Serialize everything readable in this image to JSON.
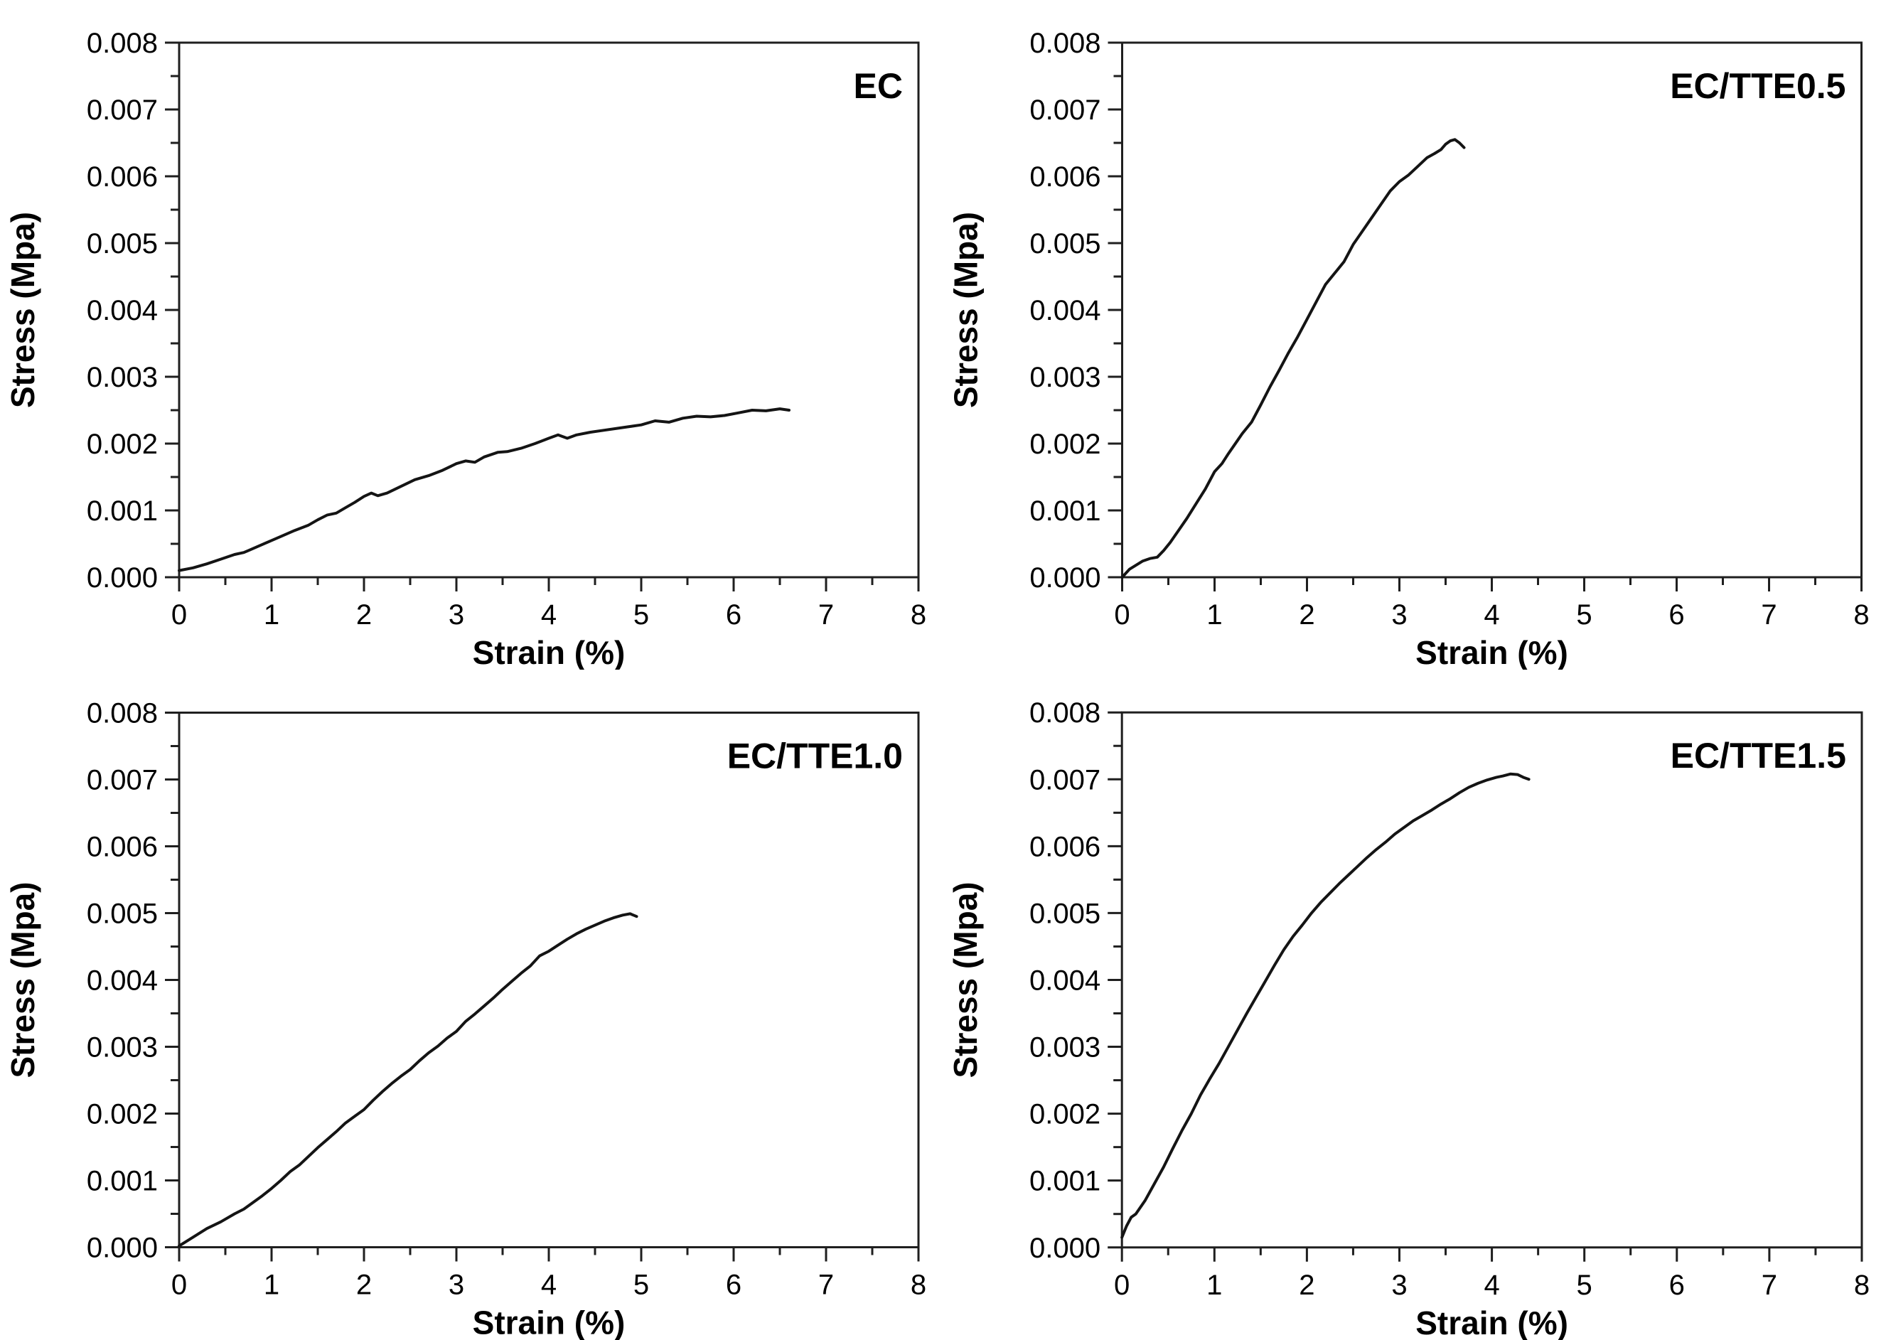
{
  "page": {
    "background": "#ffffff"
  },
  "style": {
    "axis_color": "#1f1f1f",
    "curve_color": "#141414",
    "text_color": "#000000",
    "axis_stroke_width": 3,
    "curve_stroke_width": 4
  },
  "chart_data": [
    {
      "id": "ec",
      "type": "line",
      "panel_label": "EC",
      "xlabel": "Strain (%)",
      "ylabel": "Stress (Mpa)",
      "xlim": [
        0,
        8
      ],
      "ylim": [
        0,
        0.008
      ],
      "x_major_step": 1,
      "x_minor_step": 0.5,
      "y_major_step": 0.001,
      "y_minor_step": 0.0005,
      "y_tick_decimals": 3,
      "grid": false,
      "legend_position": "none",
      "points": [
        [
          0,
          0.0001
        ],
        [
          0.15,
          0.00014
        ],
        [
          0.3,
          0.0002
        ],
        [
          0.45,
          0.00027
        ],
        [
          0.6,
          0.00034
        ],
        [
          0.7,
          0.00037
        ],
        [
          0.75,
          0.0004
        ],
        [
          0.9,
          0.00049
        ],
        [
          1.0,
          0.00055
        ],
        [
          1.1,
          0.00061
        ],
        [
          1.25,
          0.0007
        ],
        [
          1.4,
          0.00078
        ],
        [
          1.5,
          0.00086
        ],
        [
          1.6,
          0.00093
        ],
        [
          1.7,
          0.00096
        ],
        [
          1.8,
          0.00104
        ],
        [
          1.9,
          0.00112
        ],
        [
          2.0,
          0.00121
        ],
        [
          2.08,
          0.00126
        ],
        [
          2.15,
          0.00122
        ],
        [
          2.25,
          0.00126
        ],
        [
          2.4,
          0.00136
        ],
        [
          2.55,
          0.00146
        ],
        [
          2.7,
          0.00152
        ],
        [
          2.85,
          0.0016
        ],
        [
          3.0,
          0.0017
        ],
        [
          3.1,
          0.00174
        ],
        [
          3.2,
          0.00172
        ],
        [
          3.3,
          0.0018
        ],
        [
          3.45,
          0.00187
        ],
        [
          3.55,
          0.00188
        ],
        [
          3.7,
          0.00193
        ],
        [
          3.85,
          0.002
        ],
        [
          4.0,
          0.00208
        ],
        [
          4.1,
          0.00213
        ],
        [
          4.2,
          0.00208
        ],
        [
          4.3,
          0.00213
        ],
        [
          4.45,
          0.00217
        ],
        [
          4.6,
          0.0022
        ],
        [
          4.75,
          0.00223
        ],
        [
          4.85,
          0.00225
        ],
        [
          5.0,
          0.00228
        ],
        [
          5.15,
          0.00234
        ],
        [
          5.3,
          0.00232
        ],
        [
          5.45,
          0.00238
        ],
        [
          5.6,
          0.00241
        ],
        [
          5.75,
          0.0024
        ],
        [
          5.9,
          0.00242
        ],
        [
          6.05,
          0.00246
        ],
        [
          6.2,
          0.0025
        ],
        [
          6.35,
          0.00249
        ],
        [
          6.5,
          0.00252
        ],
        [
          6.6,
          0.0025
        ]
      ]
    },
    {
      "id": "ec-tte05",
      "type": "line",
      "panel_label": "EC/TTE0.5",
      "xlabel": "Strain (%)",
      "ylabel": "Stress (Mpa)",
      "xlim": [
        0,
        8
      ],
      "ylim": [
        0,
        0.008
      ],
      "x_major_step": 1,
      "x_minor_step": 0.5,
      "y_major_step": 0.001,
      "y_minor_step": 0.0005,
      "y_tick_decimals": 3,
      "grid": false,
      "legend_position": "none",
      "points": [
        [
          0,
          0.0
        ],
        [
          0.08,
          0.00012
        ],
        [
          0.15,
          0.00018
        ],
        [
          0.22,
          0.00024
        ],
        [
          0.3,
          0.00028
        ],
        [
          0.38,
          0.0003
        ],
        [
          0.45,
          0.0004
        ],
        [
          0.52,
          0.00052
        ],
        [
          0.6,
          0.00068
        ],
        [
          0.7,
          0.00088
        ],
        [
          0.8,
          0.0011
        ],
        [
          0.9,
          0.00132
        ],
        [
          1.0,
          0.00158
        ],
        [
          1.08,
          0.0017
        ],
        [
          1.15,
          0.00185
        ],
        [
          1.25,
          0.00205
        ],
        [
          1.3,
          0.00215
        ],
        [
          1.4,
          0.00232
        ],
        [
          1.5,
          0.00258
        ],
        [
          1.6,
          0.00285
        ],
        [
          1.7,
          0.0031
        ],
        [
          1.8,
          0.00336
        ],
        [
          1.9,
          0.0036
        ],
        [
          2.0,
          0.00386
        ],
        [
          2.1,
          0.00412
        ],
        [
          2.2,
          0.00438
        ],
        [
          2.3,
          0.00455
        ],
        [
          2.4,
          0.00472
        ],
        [
          2.5,
          0.00498
        ],
        [
          2.6,
          0.00518
        ],
        [
          2.7,
          0.00538
        ],
        [
          2.8,
          0.00558
        ],
        [
          2.9,
          0.00578
        ],
        [
          3.0,
          0.00592
        ],
        [
          3.1,
          0.00602
        ],
        [
          3.2,
          0.00615
        ],
        [
          3.3,
          0.00628
        ],
        [
          3.38,
          0.00634
        ],
        [
          3.45,
          0.0064
        ],
        [
          3.5,
          0.00648
        ],
        [
          3.55,
          0.00653
        ],
        [
          3.6,
          0.00655
        ],
        [
          3.65,
          0.0065
        ],
        [
          3.7,
          0.00643
        ]
      ]
    },
    {
      "id": "ec-tte10",
      "type": "line",
      "panel_label": "EC/TTE1.0",
      "xlabel": "Strain (%)",
      "ylabel": "Stress (Mpa)",
      "xlim": [
        0,
        8
      ],
      "ylim": [
        0,
        0.008
      ],
      "x_major_step": 1,
      "x_minor_step": 0.5,
      "y_major_step": 0.001,
      "y_minor_step": 0.0005,
      "y_tick_decimals": 3,
      "grid": false,
      "legend_position": "none",
      "points": [
        [
          0,
          2e-05
        ],
        [
          0.15,
          0.00015
        ],
        [
          0.3,
          0.00028
        ],
        [
          0.45,
          0.00038
        ],
        [
          0.6,
          0.0005
        ],
        [
          0.7,
          0.00057
        ],
        [
          0.8,
          0.00067
        ],
        [
          0.9,
          0.00077
        ],
        [
          1.0,
          0.00088
        ],
        [
          1.1,
          0.001
        ],
        [
          1.2,
          0.00113
        ],
        [
          1.3,
          0.00123
        ],
        [
          1.4,
          0.00136
        ],
        [
          1.5,
          0.00149
        ],
        [
          1.6,
          0.00161
        ],
        [
          1.7,
          0.00173
        ],
        [
          1.8,
          0.00186
        ],
        [
          1.9,
          0.00196
        ],
        [
          2.0,
          0.00206
        ],
        [
          2.1,
          0.0022
        ],
        [
          2.2,
          0.00233
        ],
        [
          2.3,
          0.00245
        ],
        [
          2.4,
          0.00256
        ],
        [
          2.5,
          0.00266
        ],
        [
          2.6,
          0.00279
        ],
        [
          2.7,
          0.00291
        ],
        [
          2.8,
          0.00301
        ],
        [
          2.9,
          0.00313
        ],
        [
          3.0,
          0.00323
        ],
        [
          3.1,
          0.00338
        ],
        [
          3.2,
          0.00349
        ],
        [
          3.3,
          0.00361
        ],
        [
          3.4,
          0.00373
        ],
        [
          3.5,
          0.00386
        ],
        [
          3.6,
          0.00398
        ],
        [
          3.7,
          0.0041
        ],
        [
          3.8,
          0.00421
        ],
        [
          3.9,
          0.00436
        ],
        [
          4.0,
          0.00443
        ],
        [
          4.1,
          0.00452
        ],
        [
          4.2,
          0.00461
        ],
        [
          4.3,
          0.00469
        ],
        [
          4.4,
          0.00476
        ],
        [
          4.5,
          0.00482
        ],
        [
          4.6,
          0.00488
        ],
        [
          4.7,
          0.00493
        ],
        [
          4.8,
          0.00497
        ],
        [
          4.88,
          0.00499
        ],
        [
          4.95,
          0.00495
        ]
      ]
    },
    {
      "id": "ec-tte15",
      "type": "line",
      "panel_label": "EC/TTE1.5",
      "xlabel": "Strain (%)",
      "ylabel": "Stress (Mpa)",
      "xlim": [
        0,
        8
      ],
      "ylim": [
        0,
        0.008
      ],
      "x_major_step": 1,
      "x_minor_step": 0.5,
      "y_major_step": 0.001,
      "y_minor_step": 0.0005,
      "y_tick_decimals": 3,
      "grid": false,
      "legend_position": "none",
      "points": [
        [
          0,
          0.00015
        ],
        [
          0.05,
          0.00032
        ],
        [
          0.1,
          0.00045
        ],
        [
          0.15,
          0.0005
        ],
        [
          0.25,
          0.0007
        ],
        [
          0.35,
          0.00095
        ],
        [
          0.45,
          0.0012
        ],
        [
          0.55,
          0.00148
        ],
        [
          0.65,
          0.00175
        ],
        [
          0.75,
          0.002
        ],
        [
          0.85,
          0.00228
        ],
        [
          0.95,
          0.00252
        ],
        [
          1.05,
          0.00275
        ],
        [
          1.15,
          0.003
        ],
        [
          1.25,
          0.00325
        ],
        [
          1.35,
          0.0035
        ],
        [
          1.45,
          0.00374
        ],
        [
          1.55,
          0.00398
        ],
        [
          1.65,
          0.00422
        ],
        [
          1.75,
          0.00445
        ],
        [
          1.85,
          0.00465
        ],
        [
          1.95,
          0.00482
        ],
        [
          2.05,
          0.005
        ],
        [
          2.15,
          0.00516
        ],
        [
          2.25,
          0.0053
        ],
        [
          2.35,
          0.00544
        ],
        [
          2.45,
          0.00557
        ],
        [
          2.55,
          0.0057
        ],
        [
          2.65,
          0.00583
        ],
        [
          2.75,
          0.00595
        ],
        [
          2.85,
          0.00606
        ],
        [
          2.95,
          0.00618
        ],
        [
          3.05,
          0.00628
        ],
        [
          3.15,
          0.00638
        ],
        [
          3.25,
          0.00646
        ],
        [
          3.35,
          0.00654
        ],
        [
          3.45,
          0.00663
        ],
        [
          3.55,
          0.00671
        ],
        [
          3.65,
          0.0068
        ],
        [
          3.75,
          0.00688
        ],
        [
          3.85,
          0.00694
        ],
        [
          3.95,
          0.00699
        ],
        [
          4.05,
          0.00703
        ],
        [
          4.12,
          0.00705
        ],
        [
          4.2,
          0.00708
        ],
        [
          4.28,
          0.00707
        ],
        [
          4.34,
          0.00703
        ],
        [
          4.4,
          0.007
        ]
      ]
    }
  ]
}
